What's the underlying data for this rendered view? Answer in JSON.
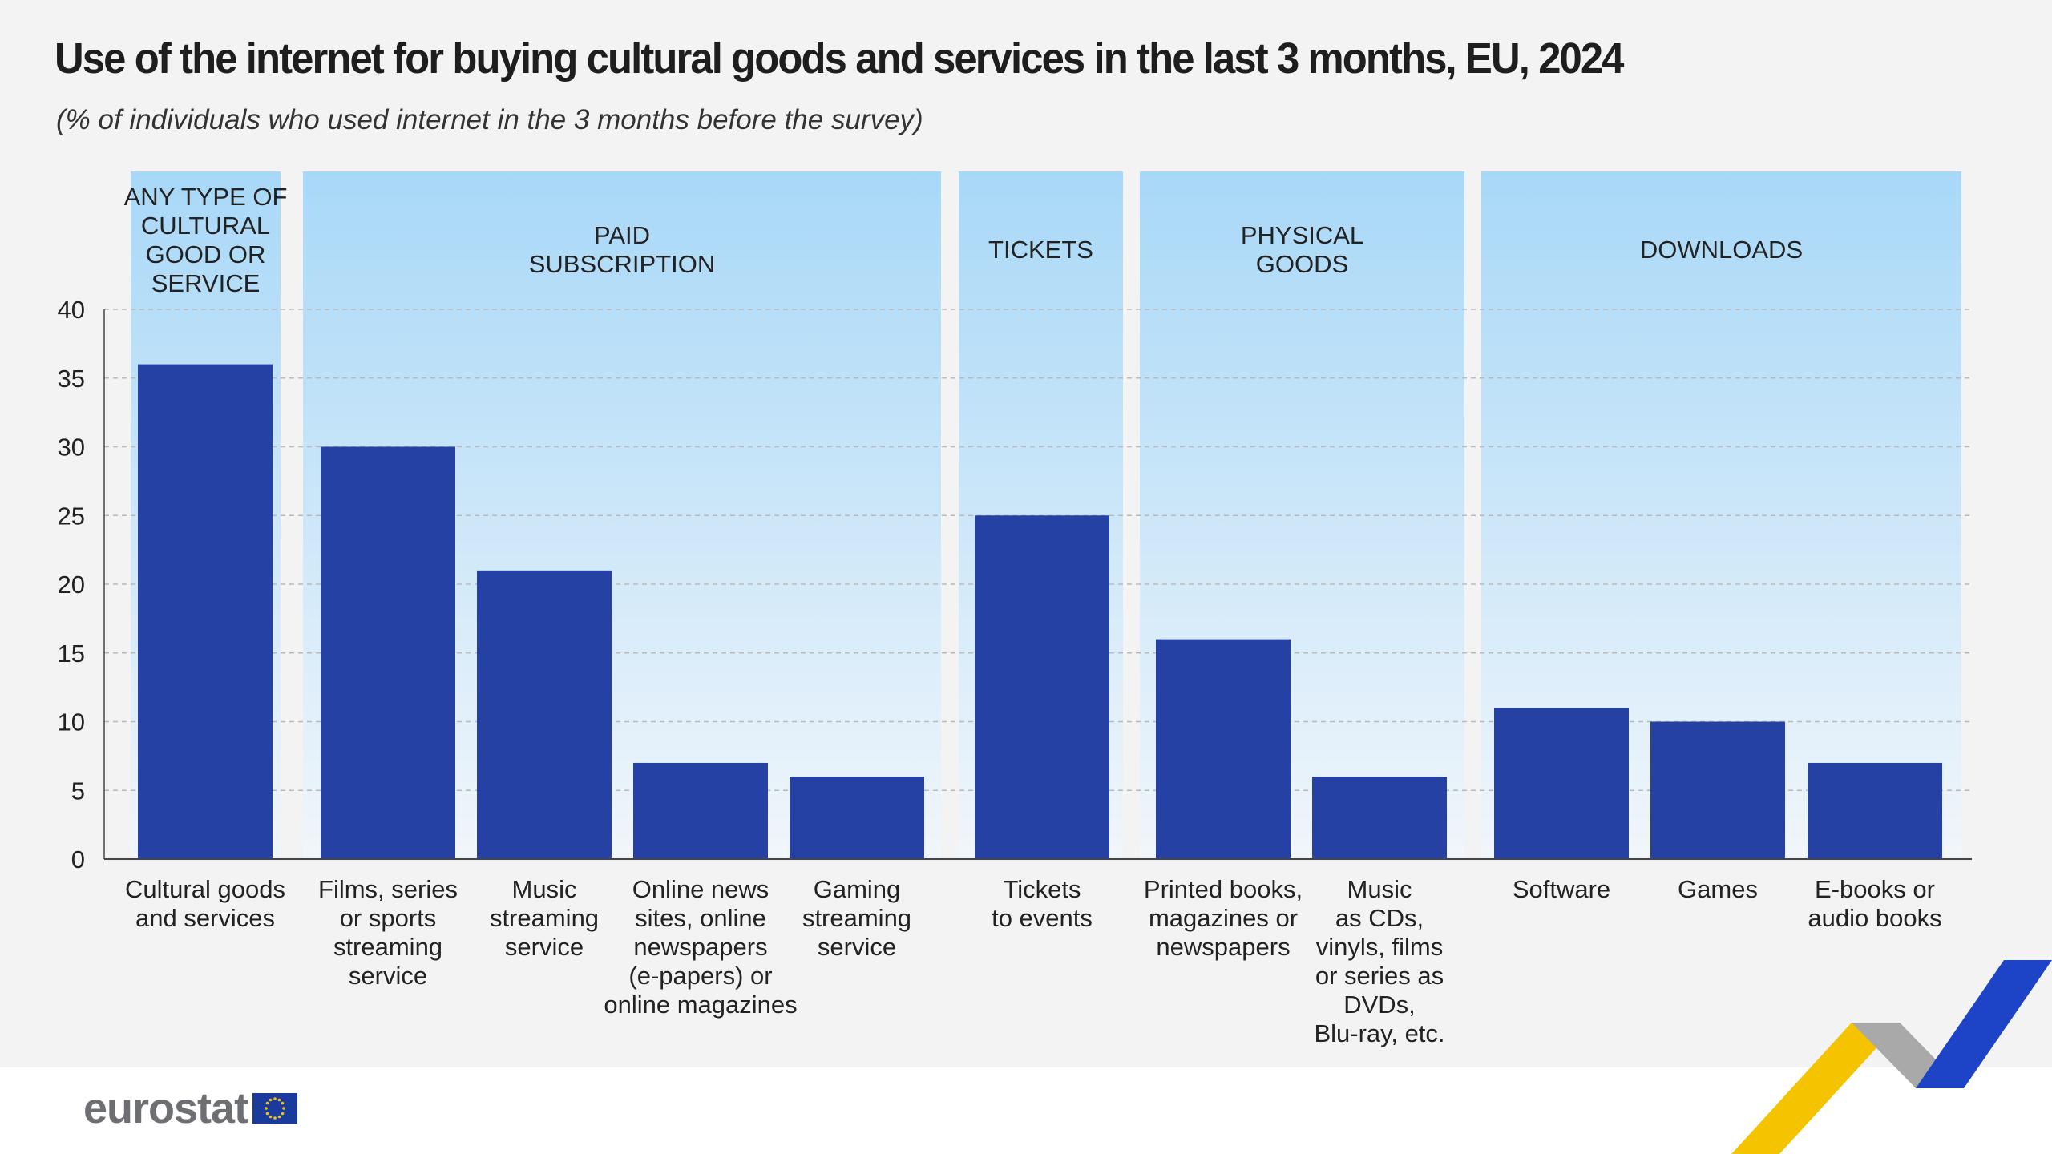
{
  "title": "Use of the internet for buying cultural goods and services in the last 3 months, EU, 2024",
  "subtitle": "(% of individuals who used internet in the 3 months before the survey)",
  "logo_text": "eurostat",
  "colors": {
    "bar": "#2541a3",
    "group_band_top": "#a8d8f8",
    "group_band_bottom": "#f1f6fa",
    "grid": "#b9b9b9",
    "text": "#222222"
  },
  "chart_data": {
    "type": "bar",
    "ylim": [
      0,
      40
    ],
    "yticks": [
      0,
      5,
      10,
      15,
      20,
      25,
      30,
      35,
      40
    ],
    "grid": true,
    "groups": [
      {
        "label": "ANY TYPE OF\nCULTURAL\nGOOD OR\nSERVICE",
        "categories": [
          0
        ]
      },
      {
        "label": "PAID\nSUBSCRIPTION",
        "categories": [
          1,
          2,
          3,
          4
        ]
      },
      {
        "label": "TICKETS",
        "categories": [
          5
        ]
      },
      {
        "label": "PHYSICAL\nGOODS",
        "categories": [
          6,
          7
        ]
      },
      {
        "label": "DOWNLOADS",
        "categories": [
          8,
          9,
          10
        ]
      }
    ],
    "categories": [
      "Cultural goods\nand services",
      "Films, series\nor sports\nstreaming\nservice",
      "Music\nstreaming\nservice",
      "Online news\nsites, online\nnewspapers\n(e-papers) or\nonline magazines",
      "Gaming\nstreaming\nservice",
      "Tickets\nto events",
      "Printed books,\nmagazines or\nnewspapers",
      "Music\nas CDs,\nvinyls, films\nor series as\nDVDs,\nBlu-ray, etc.",
      "Software",
      "Games",
      "E-books or\naudio books"
    ],
    "values": [
      36,
      30,
      21,
      7,
      6,
      25,
      16,
      6,
      11,
      10,
      7
    ]
  }
}
